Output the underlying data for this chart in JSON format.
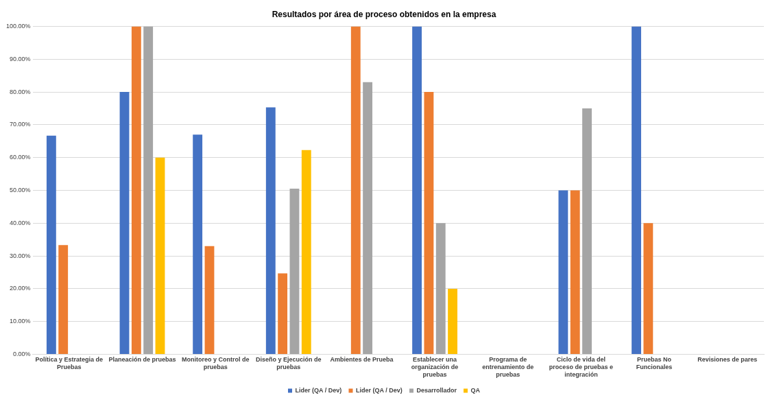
{
  "chart_data": {
    "type": "bar",
    "title": "Resultados por área de proceso obtenidos en la empresa",
    "categories": [
      "Política y Estrategia de Pruebas",
      "Planeación de pruebas",
      "Monitoreo y Control de pruebas",
      "Diseño y Ejecución de pruebas",
      "Ambientes de Prueba",
      "Establecer una organización de pruebas",
      "Programa de entrenamiento de pruebas",
      "Ciclo de vida del proceso de pruebas e integración",
      "Pruebas No Funcionales",
      "Revisiones de pares"
    ],
    "series": [
      {
        "name": "Lider (QA / Dev)",
        "color": "#4472c4",
        "values": [
          66.7,
          80,
          67,
          75.3,
          null,
          100,
          null,
          50,
          100,
          null
        ]
      },
      {
        "name": "Lider (QA / Dev)",
        "color": "#ed7d31",
        "values": [
          33.3,
          100,
          33,
          24.7,
          100,
          80,
          null,
          50,
          40,
          null
        ]
      },
      {
        "name": "Desarrollador",
        "color": "#a5a5a5",
        "values": [
          null,
          100,
          null,
          50.5,
          83,
          40,
          null,
          75,
          null,
          null
        ]
      },
      {
        "name": "QA",
        "color": "#ffc000",
        "values": [
          null,
          60,
          null,
          62.3,
          null,
          20,
          null,
          null,
          null,
          null
        ]
      }
    ],
    "ylim": [
      0,
      100
    ],
    "yticks": [
      {
        "value": 0,
        "label": "0.00%"
      },
      {
        "value": 10,
        "label": "10.00%"
      },
      {
        "value": 20,
        "label": "20.00%"
      },
      {
        "value": 30,
        "label": "30.00%"
      },
      {
        "value": 40,
        "label": "40.00%"
      },
      {
        "value": 50,
        "label": "50.00%"
      },
      {
        "value": 60,
        "label": "60.00%"
      },
      {
        "value": 70,
        "label": "70.00%"
      },
      {
        "value": 80,
        "label": "80.00%"
      },
      {
        "value": 90,
        "label": "90.00%"
      },
      {
        "value": 100,
        "label": "100.00%"
      }
    ],
    "grid": "y",
    "legend": "bottom"
  }
}
